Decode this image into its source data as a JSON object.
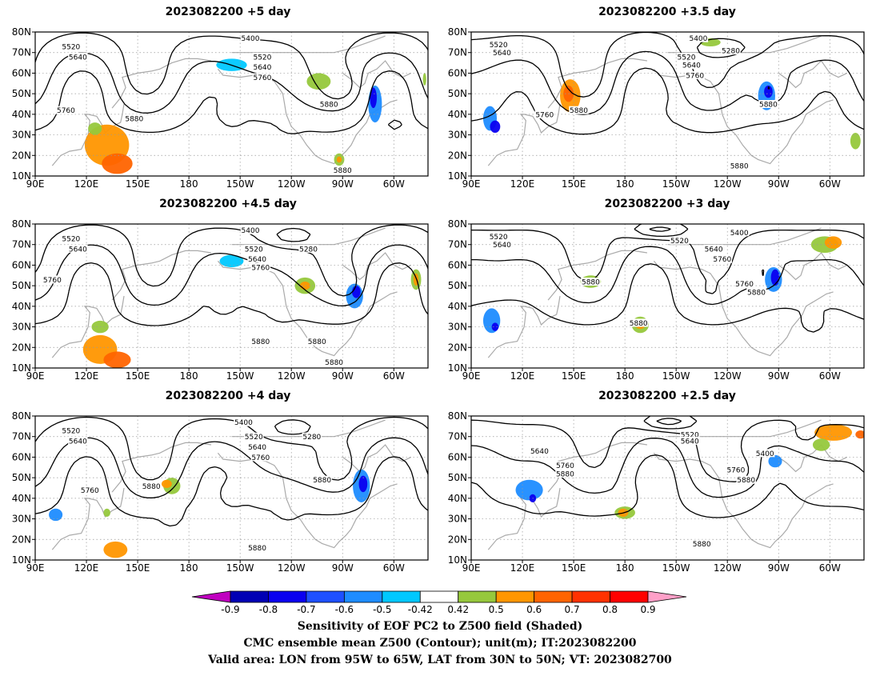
{
  "panels": [
    {
      "title": "2023082200 +5 day",
      "labels": [
        "5520",
        "5640",
        "5400",
        "5520",
        "5640",
        "5760",
        "5760",
        "5880",
        "5880",
        "5880"
      ]
    },
    {
      "title": "2023082200 +3.5 day",
      "labels": [
        "5520",
        "5640",
        "5400",
        "5280",
        "5520",
        "5640",
        "5760",
        "5760",
        "5880",
        "5880",
        "5880"
      ]
    },
    {
      "title": "2023082200 +4.5 day",
      "labels": [
        "5520",
        "5640",
        "5400",
        "5520",
        "5640",
        "5760",
        "5280",
        "5760",
        "5880",
        "5880",
        "5880"
      ]
    },
    {
      "title": "2023082200 +3 day",
      "labels": [
        "5520",
        "5640",
        "5520",
        "5400",
        "5640",
        "5760",
        "5760",
        "5880",
        "5880",
        "5880"
      ]
    },
    {
      "title": "2023082200 +4 day",
      "labels": [
        "5520",
        "5640",
        "5400",
        "5520",
        "5640",
        "5760",
        "5280",
        "5760",
        "5880",
        "5880",
        "5880"
      ]
    },
    {
      "title": "2023082200 +2.5 day",
      "labels": [
        "5520",
        "5640",
        "5640",
        "5400",
        "5760",
        "5760",
        "5880",
        "5880",
        "5880"
      ]
    }
  ],
  "axes": {
    "lat_labels": [
      "80N",
      "70N",
      "60N",
      "50N",
      "40N",
      "30N",
      "20N",
      "10N"
    ],
    "lon_labels": [
      "90E",
      "120E",
      "150E",
      "180",
      "150W",
      "120W",
      "90W",
      "60W"
    ]
  },
  "colorbar": {
    "labels": [
      "-0.9",
      "-0.8",
      "-0.7",
      "-0.6",
      "-0.5",
      "-0.42",
      "0.42",
      "0.5",
      "0.6",
      "0.7",
      "0.8",
      "0.9"
    ],
    "colors": [
      "#c000c0",
      "#0000b4",
      "#0a00f0",
      "#1e50ff",
      "#1e8cff",
      "#00c8ff",
      "#ffffff",
      "#96c83c",
      "#ff9600",
      "#ff6400",
      "#ff3200",
      "#ff0000",
      "#ffa0c8"
    ]
  },
  "caption": {
    "line1": "Sensitivity of EOF PC2 to Z500 field (Shaded)",
    "line2": "CMC ensemble mean Z500 (Contour); unit(m); IT:2023082200",
    "line3": "Valid area: LON from 95W to 65W, LAT from 30N to 50N; VT: 2023082700"
  }
}
